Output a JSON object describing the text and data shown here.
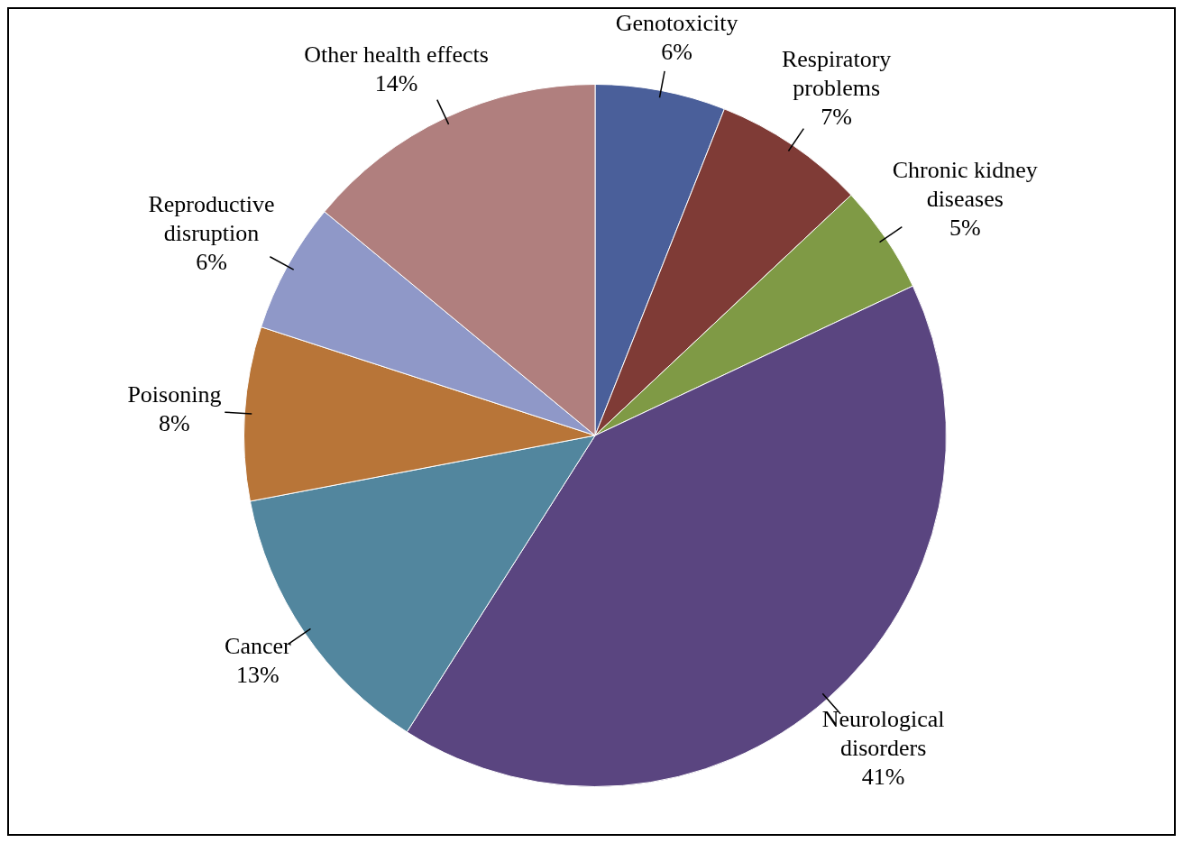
{
  "chart_data": {
    "type": "pie",
    "categories": [
      "Genotoxicity",
      "Respiratory problems",
      "Chronic kidney diseases",
      "Neurological disorders",
      "Cancer",
      "Poisoning",
      "Reproductive disruption",
      "Other health effects"
    ],
    "values": [
      6,
      7,
      5,
      41,
      13,
      8,
      6,
      14
    ],
    "value_labels": [
      "6%",
      "7%",
      "5%",
      "41%",
      "13%",
      "8%",
      "6%",
      "14%"
    ],
    "colors": [
      "#4a5f9a",
      "#7f3b36",
      "#7f9a45",
      "#5a4580",
      "#52869e",
      "#b87538",
      "#8f98c8",
      "#b07f7e"
    ]
  }
}
